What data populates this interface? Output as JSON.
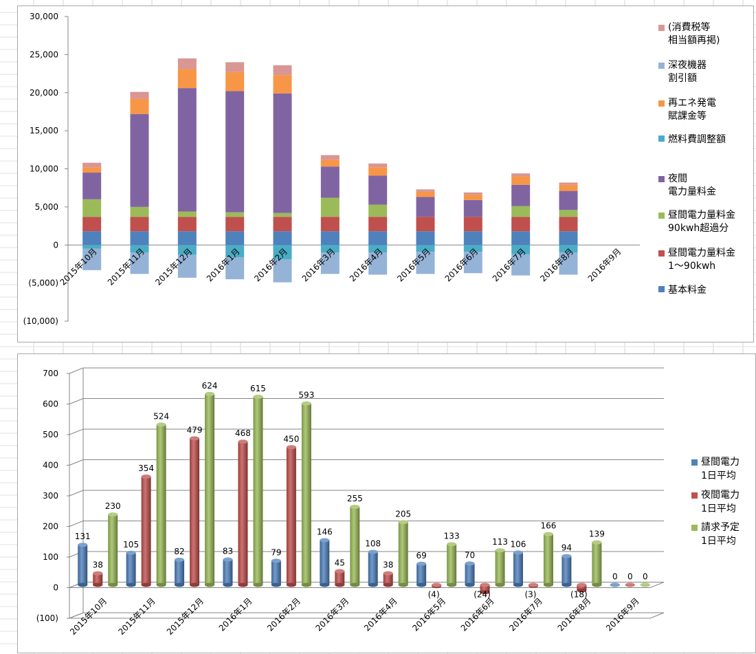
{
  "chart_data": [
    {
      "type": "bar",
      "stacked": true,
      "categories": [
        "2015年10月",
        "2015年11月",
        "2015年12月",
        "2016年1月",
        "2016年2月",
        "2016年3月",
        "2016年4月",
        "2016年5月",
        "2016年6月",
        "2016年7月",
        "2016年8月",
        "2016年9月"
      ],
      "ylim": [
        -10000,
        30000
      ],
      "ytick_labels": [
        "30,000",
        "25,000",
        "20,000",
        "15,000",
        "10,000",
        "5,000",
        "0",
        "(5,000)",
        "(10,000)"
      ],
      "grid": true,
      "legend_position": "right",
      "series": [
        {
          "name": "基本料金",
          "color": "#4f81bd",
          "values": [
            1800,
            1800,
            1800,
            1800,
            1800,
            1800,
            1800,
            1800,
            1800,
            1800,
            1800,
            0
          ]
        },
        {
          "name": "昼間電力量料金\n1〜90kwh",
          "color": "#c0504d",
          "values": [
            1900,
            1900,
            1900,
            1900,
            1900,
            1900,
            1900,
            1900,
            1900,
            1900,
            1900,
            0
          ]
        },
        {
          "name": "昼間電力量料金\n90kwh超過分",
          "color": "#9bbb59",
          "values": [
            2300,
            1300,
            700,
            600,
            500,
            2500,
            1600,
            0,
            0,
            1400,
            900,
            0
          ]
        },
        {
          "name": "夜間\n電力量料金",
          "color": "#8064a2",
          "values": [
            3500,
            12200,
            16200,
            15900,
            15700,
            4100,
            3800,
            2600,
            2200,
            2800,
            2500,
            0
          ]
        },
        {
          "name": "燃料費調整額",
          "color": "#4bacc6",
          "values": [
            -500,
            -1000,
            -1300,
            -1600,
            -1900,
            -1000,
            -1000,
            -900,
            -900,
            -1200,
            -1000,
            0
          ]
        },
        {
          "name": "再エネ発電\n賦課金等",
          "color": "#f79646",
          "values": [
            700,
            2000,
            2500,
            2500,
            2400,
            900,
            1100,
            700,
            700,
            1100,
            800,
            0
          ]
        },
        {
          "name": "深夜機器\n割引額",
          "color": "#95b3d7",
          "values": [
            -2800,
            -2800,
            -3000,
            -2900,
            -3000,
            -2800,
            -2900,
            -2900,
            -2800,
            -2800,
            -2900,
            0
          ]
        },
        {
          "name": "(消費税等\n相当額再掲)",
          "color": "#d99694",
          "values": [
            600,
            900,
            1400,
            1300,
            1300,
            600,
            500,
            300,
            300,
            400,
            300,
            0
          ]
        }
      ]
    },
    {
      "type": "bar",
      "style": "3d-cylinder",
      "categories": [
        "2015年10月",
        "2015年11月",
        "2015年12月",
        "2016年1月",
        "2016年2月",
        "2016年3月",
        "2016年4月",
        "2016年5月",
        "2016年6月",
        "2016年7月",
        "2016年8月",
        "2016年9月"
      ],
      "ylim": [
        -100,
        700
      ],
      "ytick_labels": [
        "700",
        "600",
        "500",
        "400",
        "300",
        "200",
        "100",
        "0",
        "(100)"
      ],
      "grid": true,
      "legend_position": "right",
      "series": [
        {
          "name": "昼間電力\n1日平均",
          "color": "#4f81bd",
          "values": [
            131,
            105,
            82,
            83,
            79,
            146,
            108,
            69,
            70,
            106,
            94,
            0
          ],
          "labels": [
            "131",
            "105",
            "82",
            "83",
            "79",
            "146",
            "108",
            "69",
            "70",
            "106",
            "94",
            "0"
          ]
        },
        {
          "name": "夜間電力\n1日平均",
          "color": "#c0504d",
          "values": [
            38,
            354,
            479,
            468,
            450,
            45,
            38,
            -4,
            -24,
            -3,
            -18,
            0
          ],
          "labels": [
            "38",
            "354",
            "479",
            "468",
            "450",
            "45",
            "38",
            "(4)",
            "(24)",
            "(3)",
            "(18)",
            "0"
          ]
        },
        {
          "name": "請求予定\n1日平均",
          "color": "#9bbb59",
          "values": [
            230,
            524,
            624,
            615,
            593,
            255,
            205,
            133,
            113,
            166,
            139,
            0
          ],
          "labels": [
            "230",
            "524",
            "624",
            "615",
            "593",
            "255",
            "205",
            "133",
            "113",
            "166",
            "139",
            "0"
          ]
        }
      ]
    }
  ]
}
